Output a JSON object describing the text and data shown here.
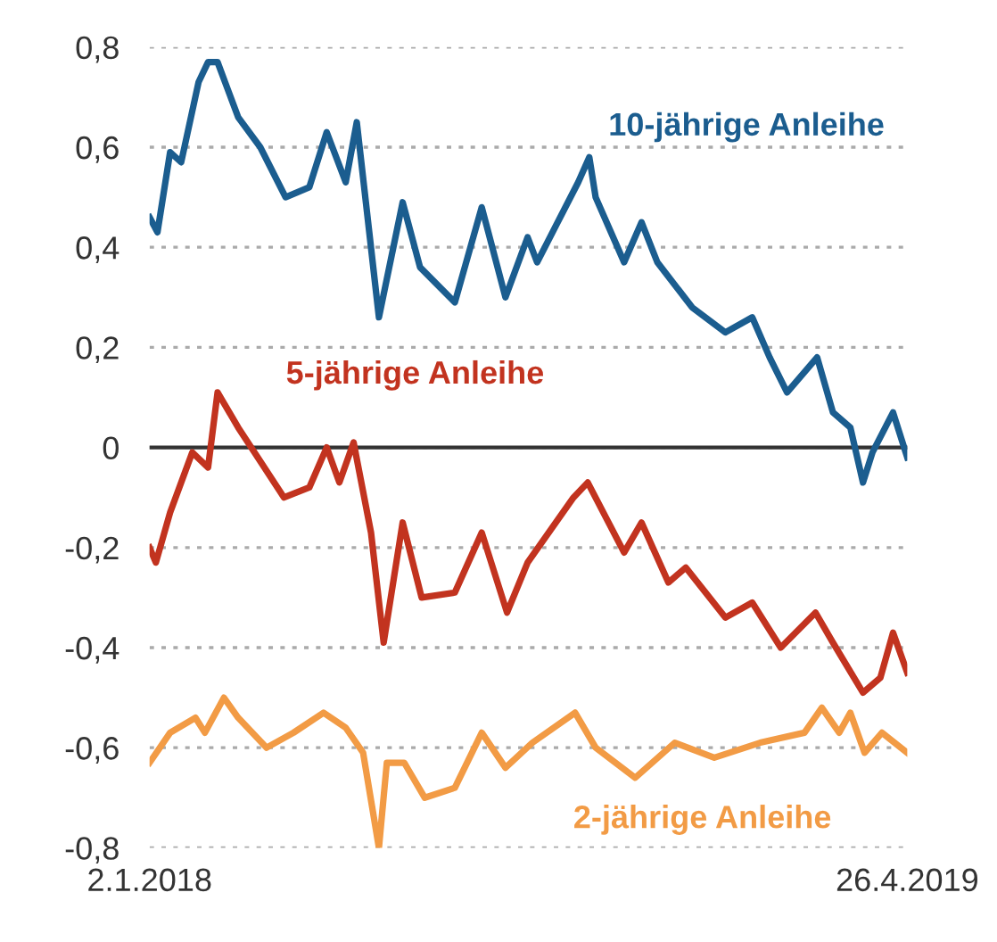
{
  "chart_data": {
    "type": "line",
    "xlim": [
      "2018-01-02",
      "2019-04-26"
    ],
    "xticks": [
      {
        "value": "2018-01-02",
        "label": "2.1.2018"
      },
      {
        "value": "2019-04-26",
        "label": "26.4.2019"
      }
    ],
    "ylim": [
      -0.8,
      0.8
    ],
    "yticks": [
      {
        "value": -0.8,
        "label": "-0,8"
      },
      {
        "value": -0.6,
        "label": "-0,6"
      },
      {
        "value": -0.4,
        "label": "-0,4"
      },
      {
        "value": -0.2,
        "label": "-0,2"
      },
      0,
      {
        "value": 0.2,
        "label": "0,2"
      },
      {
        "value": 0.4,
        "label": "0,4"
      },
      {
        "value": 0.6,
        "label": "0,6"
      },
      {
        "value": 0.8,
        "label": "0,8"
      }
    ],
    "grid": "y",
    "legend": false,
    "line_style": "solid",
    "ref_lines": [
      {
        "axis": "y",
        "value": 0,
        "color": "#333333",
        "line_style": "solid"
      }
    ],
    "series": [
      {
        "name": "10-jährige Anleihe",
        "color": "#1b5d8f",
        "x": [
          "2018-01-02",
          "2018-01-07",
          "2018-01-15",
          "2018-01-22",
          "2018-02-02",
          "2018-02-08",
          "2018-02-14",
          "2018-02-27",
          "2018-03-13",
          "2018-03-29",
          "2018-04-13",
          "2018-04-24",
          "2018-05-06",
          "2018-05-13",
          "2018-05-27",
          "2018-06-11",
          "2018-06-22",
          "2018-07-14",
          "2018-07-31",
          "2018-08-15",
          "2018-08-29",
          "2018-09-04",
          "2018-09-30",
          "2018-10-07",
          "2018-10-11",
          "2018-10-29",
          "2018-11-09",
          "2018-11-19",
          "2018-12-11",
          "2019-01-01",
          "2019-01-18",
          "2019-01-29",
          "2019-02-09",
          "2019-02-28",
          "2019-03-10",
          "2019-03-21",
          "2019-03-29",
          "2019-04-04",
          "2019-04-17",
          "2019-04-26"
        ],
        "values": [
          0.46,
          0.43,
          0.59,
          0.57,
          0.73,
          0.77,
          0.77,
          0.66,
          0.6,
          0.5,
          0.52,
          0.63,
          0.53,
          0.65,
          0.26,
          0.49,
          0.36,
          0.29,
          0.48,
          0.3,
          0.42,
          0.37,
          0.53,
          0.58,
          0.5,
          0.37,
          0.45,
          0.37,
          0.28,
          0.23,
          0.26,
          0.18,
          0.11,
          0.18,
          0.07,
          0.04,
          -0.07,
          -0.01,
          0.07,
          -0.02
        ]
      },
      {
        "name": "5-jährige Anleihe",
        "color": "#c2331f",
        "x": [
          "2018-01-02",
          "2018-01-06",
          "2018-01-15",
          "2018-01-29",
          "2018-02-08",
          "2018-02-14",
          "2018-02-27",
          "2018-03-28",
          "2018-04-13",
          "2018-04-24",
          "2018-05-02",
          "2018-05-11",
          "2018-05-22",
          "2018-05-30",
          "2018-06-11",
          "2018-06-23",
          "2018-07-14",
          "2018-07-31",
          "2018-08-16",
          "2018-08-29",
          "2018-09-27",
          "2018-10-06",
          "2018-10-29",
          "2018-11-09",
          "2018-11-26",
          "2018-12-07",
          "2019-01-01",
          "2019-01-18",
          "2019-02-05",
          "2019-02-27",
          "2019-03-10",
          "2019-03-29",
          "2019-04-09",
          "2019-04-17",
          "2019-04-26"
        ],
        "values": [
          -0.2,
          -0.23,
          -0.13,
          -0.01,
          -0.04,
          0.11,
          0.04,
          -0.1,
          -0.08,
          0.0,
          -0.07,
          0.01,
          -0.17,
          -0.39,
          -0.15,
          -0.3,
          -0.29,
          -0.17,
          -0.33,
          -0.23,
          -0.1,
          -0.07,
          -0.21,
          -0.15,
          -0.27,
          -0.24,
          -0.34,
          -0.31,
          -0.4,
          -0.33,
          -0.39,
          -0.49,
          -0.46,
          -0.37,
          -0.45
        ]
      },
      {
        "name": "2-jährige Anleihe",
        "color": "#f29b45",
        "x": [
          "2018-01-02",
          "2018-01-15",
          "2018-01-31",
          "2018-02-06",
          "2018-02-18",
          "2018-02-27",
          "2018-03-17",
          "2018-04-03",
          "2018-04-22",
          "2018-05-06",
          "2018-05-17",
          "2018-05-27",
          "2018-06-01",
          "2018-06-12",
          "2018-06-25",
          "2018-07-14",
          "2018-07-31",
          "2018-08-15",
          "2018-09-01",
          "2018-09-28",
          "2018-10-11",
          "2018-11-05",
          "2018-11-30",
          "2018-12-25",
          "2019-01-23",
          "2019-02-20",
          "2019-03-03",
          "2019-03-14",
          "2019-03-21",
          "2019-03-30",
          "2019-04-10",
          "2019-04-26"
        ],
        "values": [
          -0.63,
          -0.57,
          -0.54,
          -0.57,
          -0.5,
          -0.54,
          -0.6,
          -0.57,
          -0.53,
          -0.56,
          -0.61,
          -0.8,
          -0.63,
          -0.63,
          -0.7,
          -0.68,
          -0.57,
          -0.64,
          -0.59,
          -0.53,
          -0.6,
          -0.66,
          -0.59,
          -0.62,
          -0.59,
          -0.57,
          -0.52,
          -0.57,
          -0.53,
          -0.61,
          -0.57,
          -0.61
        ]
      }
    ]
  }
}
